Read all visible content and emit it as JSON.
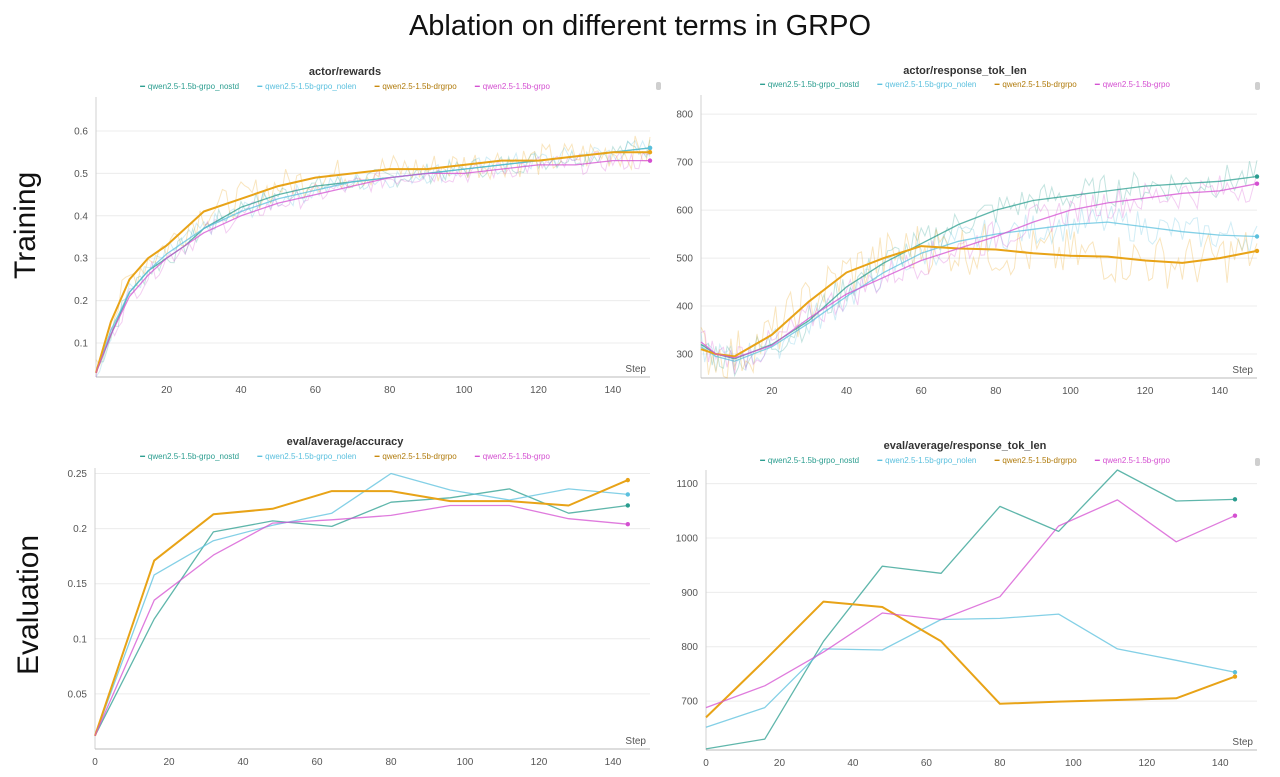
{
  "title": "Ablation on different terms in GRPO",
  "rows": [
    "Training",
    "Evaluation"
  ],
  "chart_data": [
    {
      "type": "line",
      "title": "actor/rewards",
      "xlabel": "Step",
      "xlim": [
        1,
        150
      ],
      "ylim": [
        0.02,
        0.68
      ],
      "xticks": [
        20,
        40,
        60,
        80,
        100,
        120,
        140
      ],
      "yticks": [
        0.1,
        0.2,
        0.3,
        0.4,
        0.5,
        0.6
      ],
      "ytick_labels": [
        "0.1",
        "0.2",
        "0.3",
        "0.4",
        "0.5",
        "0.6"
      ],
      "grid": true,
      "raw_noise": 0.025,
      "series": [
        {
          "name": "qwen2.5-1.5b-grpo_nostd",
          "color": "#2a9d8f",
          "x": [
            1,
            5,
            10,
            15,
            20,
            25,
            30,
            40,
            50,
            60,
            70,
            80,
            90,
            100,
            110,
            120,
            130,
            140,
            150
          ],
          "values": [
            0.03,
            0.12,
            0.22,
            0.27,
            0.3,
            0.33,
            0.37,
            0.42,
            0.45,
            0.47,
            0.48,
            0.49,
            0.5,
            0.51,
            0.52,
            0.53,
            0.54,
            0.55,
            0.56
          ]
        },
        {
          "name": "qwen2.5-1.5b-grpo_nolen",
          "color": "#5bc0de",
          "x": [
            1,
            5,
            10,
            15,
            20,
            25,
            30,
            40,
            50,
            60,
            70,
            80,
            90,
            100,
            110,
            120,
            130,
            140,
            150
          ],
          "values": [
            0.03,
            0.13,
            0.22,
            0.27,
            0.31,
            0.34,
            0.37,
            0.41,
            0.44,
            0.46,
            0.48,
            0.49,
            0.5,
            0.51,
            0.52,
            0.53,
            0.54,
            0.55,
            0.56
          ]
        },
        {
          "name": "qwen2.5-1.5b-drgrpo",
          "color": "#e8a317",
          "x": [
            1,
            5,
            10,
            15,
            20,
            25,
            30,
            40,
            50,
            60,
            70,
            80,
            90,
            100,
            110,
            120,
            130,
            140,
            150
          ],
          "values": [
            0.03,
            0.15,
            0.25,
            0.3,
            0.33,
            0.37,
            0.41,
            0.44,
            0.47,
            0.49,
            0.5,
            0.51,
            0.51,
            0.52,
            0.53,
            0.53,
            0.54,
            0.55,
            0.55
          ]
        },
        {
          "name": "qwen2.5-1.5b-grpo",
          "color": "#d44fd1",
          "x": [
            1,
            5,
            10,
            15,
            20,
            25,
            30,
            40,
            50,
            60,
            70,
            80,
            90,
            100,
            110,
            120,
            130,
            140,
            150
          ],
          "values": [
            0.03,
            0.12,
            0.21,
            0.26,
            0.3,
            0.33,
            0.36,
            0.4,
            0.43,
            0.45,
            0.47,
            0.49,
            0.5,
            0.5,
            0.51,
            0.52,
            0.52,
            0.53,
            0.53
          ]
        }
      ]
    },
    {
      "type": "line",
      "title": "actor/response_tok_len",
      "xlabel": "Step",
      "xlim": [
        1,
        150
      ],
      "ylim": [
        250,
        840
      ],
      "xticks": [
        20,
        40,
        60,
        80,
        100,
        120,
        140
      ],
      "yticks": [
        300,
        400,
        500,
        600,
        700,
        800
      ],
      "ytick_labels": [
        "300",
        "400",
        "500",
        "600",
        "700",
        "800"
      ],
      "grid": true,
      "raw_noise": 35,
      "series": [
        {
          "name": "qwen2.5-1.5b-grpo_nostd",
          "color": "#2a9d8f",
          "x": [
            1,
            5,
            10,
            20,
            30,
            40,
            50,
            60,
            70,
            80,
            90,
            100,
            110,
            120,
            130,
            140,
            150
          ],
          "values": [
            320,
            300,
            290,
            320,
            370,
            440,
            490,
            530,
            570,
            600,
            620,
            630,
            640,
            650,
            655,
            660,
            670
          ]
        },
        {
          "name": "qwen2.5-1.5b-grpo_nolen",
          "color": "#5bc0de",
          "x": [
            1,
            5,
            10,
            20,
            30,
            40,
            50,
            60,
            70,
            80,
            90,
            100,
            110,
            120,
            130,
            140,
            150
          ],
          "values": [
            315,
            295,
            285,
            315,
            365,
            420,
            470,
            510,
            535,
            550,
            560,
            570,
            575,
            565,
            555,
            548,
            545
          ]
        },
        {
          "name": "qwen2.5-1.5b-drgrpo",
          "color": "#e8a317",
          "x": [
            1,
            5,
            10,
            20,
            30,
            40,
            50,
            60,
            70,
            80,
            90,
            100,
            110,
            120,
            130,
            140,
            150
          ],
          "values": [
            310,
            300,
            295,
            340,
            410,
            470,
            500,
            525,
            520,
            518,
            510,
            505,
            503,
            495,
            490,
            500,
            515
          ]
        },
        {
          "name": "qwen2.5-1.5b-grpo",
          "color": "#d44fd1",
          "x": [
            1,
            5,
            10,
            20,
            30,
            40,
            50,
            60,
            70,
            80,
            90,
            100,
            110,
            120,
            130,
            140,
            150
          ],
          "values": [
            325,
            300,
            292,
            318,
            375,
            425,
            460,
            495,
            520,
            545,
            575,
            600,
            615,
            625,
            635,
            640,
            655
          ]
        }
      ]
    },
    {
      "type": "line",
      "title": "eval/average/accuracy",
      "xlabel": "Step",
      "xlim": [
        0,
        150
      ],
      "ylim": [
        0.0,
        0.255
      ],
      "xticks": [
        0,
        20,
        40,
        60,
        80,
        100,
        120,
        140
      ],
      "yticks": [
        0.05,
        0.1,
        0.15,
        0.2,
        0.25
      ],
      "ytick_labels": [
        "0.05",
        "0.1",
        "0.15",
        "0.2",
        "0.25"
      ],
      "grid": true,
      "series": [
        {
          "name": "qwen2.5-1.5b-grpo_nostd",
          "color": "#2a9d8f",
          "x": [
            0,
            16,
            32,
            48,
            64,
            80,
            96,
            112,
            128,
            144
          ],
          "values": [
            0.012,
            0.118,
            0.197,
            0.207,
            0.202,
            0.224,
            0.228,
            0.236,
            0.214,
            0.221
          ]
        },
        {
          "name": "qwen2.5-1.5b-grpo_nolen",
          "color": "#5bc0de",
          "x": [
            0,
            16,
            32,
            48,
            64,
            80,
            96,
            112,
            128,
            144
          ],
          "values": [
            0.012,
            0.158,
            0.189,
            0.203,
            0.214,
            0.25,
            0.235,
            0.226,
            0.236,
            0.231
          ]
        },
        {
          "name": "qwen2.5-1.5b-drgrpo",
          "color": "#e8a317",
          "x": [
            0,
            16,
            32,
            48,
            64,
            80,
            96,
            112,
            128,
            144
          ],
          "values": [
            0.012,
            0.171,
            0.213,
            0.218,
            0.234,
            0.234,
            0.225,
            0.225,
            0.221,
            0.244
          ]
        },
        {
          "name": "qwen2.5-1.5b-grpo",
          "color": "#d44fd1",
          "x": [
            0,
            16,
            32,
            48,
            64,
            80,
            96,
            112,
            128,
            144
          ],
          "values": [
            0.012,
            0.135,
            0.176,
            0.205,
            0.208,
            0.212,
            0.221,
            0.221,
            0.209,
            0.204
          ]
        }
      ]
    },
    {
      "type": "line",
      "title": "eval/average/response_tok_len",
      "xlabel": "Step",
      "xlim": [
        0,
        150
      ],
      "ylim": [
        610,
        1125
      ],
      "xticks": [
        0,
        20,
        40,
        60,
        80,
        100,
        120,
        140
      ],
      "yticks": [
        700,
        800,
        900,
        1000,
        1100
      ],
      "ytick_labels": [
        "700",
        "800",
        "900",
        "1000",
        "1100"
      ],
      "grid": true,
      "series": [
        {
          "name": "qwen2.5-1.5b-grpo_nostd",
          "color": "#2a9d8f",
          "x": [
            0,
            16,
            32,
            48,
            64,
            80,
            96,
            112,
            128,
            144
          ],
          "values": [
            612,
            630,
            810,
            948,
            935,
            1058,
            1012,
            1125,
            1068,
            1071
          ]
        },
        {
          "name": "qwen2.5-1.5b-grpo_nolen",
          "color": "#5bc0de",
          "x": [
            0,
            16,
            32,
            48,
            64,
            80,
            96,
            112,
            128,
            144
          ],
          "values": [
            652,
            688,
            796,
            794,
            850,
            852,
            860,
            796,
            775,
            753
          ]
        },
        {
          "name": "qwen2.5-1.5b-drgrpo",
          "color": "#e8a317",
          "x": [
            0,
            16,
            32,
            48,
            64,
            80,
            96,
            112,
            128,
            144
          ],
          "values": [
            670,
            775,
            883,
            873,
            810,
            695,
            699,
            702,
            705,
            745
          ]
        },
        {
          "name": "qwen2.5-1.5b-grpo",
          "color": "#d44fd1",
          "x": [
            0,
            16,
            32,
            48,
            64,
            80,
            96,
            112,
            128,
            144
          ],
          "values": [
            688,
            728,
            790,
            862,
            850,
            892,
            1022,
            1070,
            993,
            1041
          ]
        }
      ]
    }
  ]
}
